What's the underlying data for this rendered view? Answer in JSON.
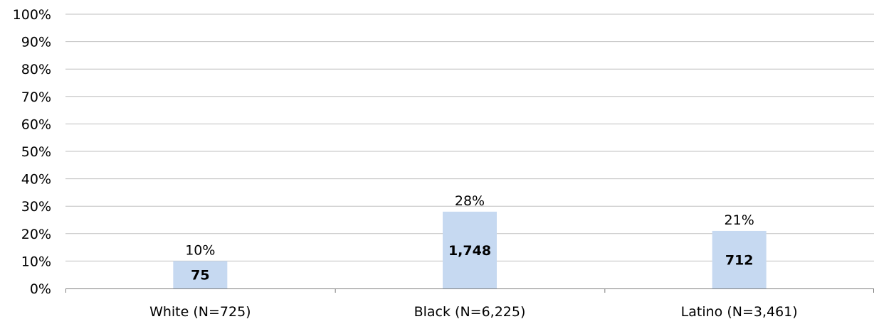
{
  "chart_data": {
    "type": "bar",
    "title": "",
    "xlabel": "",
    "ylabel": "",
    "ylim": [
      0,
      100
    ],
    "y_unit": "%",
    "yticks": [
      "0%",
      "10%",
      "20%",
      "30%",
      "40%",
      "50%",
      "60%",
      "70%",
      "80%",
      "90%",
      "100%"
    ],
    "grid": true,
    "categories": [
      "White (N=725)",
      "Black (N=6,225)",
      "Latino (N=3,461)"
    ],
    "values": [
      10,
      28,
      21
    ],
    "value_labels": [
      "10%",
      "28%",
      "21%"
    ],
    "count_labels": [
      "75",
      "1,748",
      "712"
    ],
    "bar_color": "#c6d9f1",
    "grid_color": "#bfbfbf",
    "axis_color": "#808080"
  }
}
